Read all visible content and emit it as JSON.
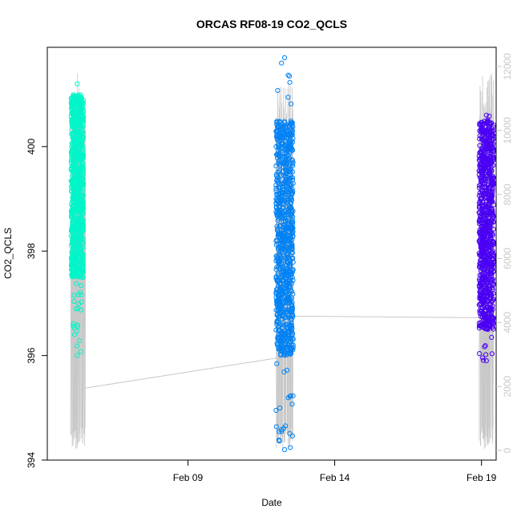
{
  "chart_data": {
    "type": "scatter",
    "title": "ORCAS RF08-19 CO2_QCLS",
    "xlabel": "Date",
    "ylabel": "CO2_QCLS",
    "x_ticks": [
      "Feb 09",
      "Feb 14",
      "Feb 19"
    ],
    "x_tick_dates": [
      "2016-02-09",
      "2016-02-14",
      "2016-02-19"
    ],
    "xlim": [
      "2016-02-04T05:00",
      "2016-02-19T12:00"
    ],
    "ylim": [
      394,
      401.9
    ],
    "y_ticks": [
      394,
      396,
      398,
      400
    ],
    "y2_ticks": [
      0,
      2000,
      4000,
      6000,
      8000,
      10000,
      12000
    ],
    "y2lim": [
      -300,
      12600
    ],
    "grid": false,
    "legend": "none",
    "series": [
      {
        "color": "#00f5c8",
        "marker": "open-circle",
        "flight_span": [
          "2016-02-05T00:00",
          "2016-02-05T12:00"
        ],
        "values_summary": {
          "x_start": "2016-02-05T00:30",
          "x_end": "2016-02-05T10:30",
          "y_min": 396.0,
          "y_max": 401.2,
          "y_typical": [
            397.5,
            401.0
          ]
        }
      },
      {
        "color": "#0082f5",
        "marker": "open-circle",
        "flight_span": [
          "2016-02-12T00:00",
          "2016-02-12T14:00"
        ],
        "values_summary": {
          "x_start": "2016-02-12T00:00",
          "x_end": "2016-02-12T14:00",
          "y_min": 394.2,
          "y_max": 401.7,
          "y_typical": [
            396.0,
            400.5
          ]
        }
      },
      {
        "color": "#4b00f5",
        "marker": "open-circle",
        "flight_span": [
          "2016-02-18T22:00",
          "2016-02-19T10:00"
        ],
        "values_summary": {
          "x_start": "2016-02-18T22:00",
          "x_end": "2016-02-19T10:00",
          "y_min": 395.9,
          "y_max": 400.6,
          "y_typical": [
            396.5,
            400.5
          ]
        }
      }
    ],
    "altitude_trace": {
      "color": "#c8c8c8",
      "axis": "right",
      "segments": [
        {
          "x": "2016-02-05T00:00",
          "y": 50
        },
        {
          "x": "2016-02-05T10:00",
          "y": 11200
        },
        {
          "x": "2016-02-05T12:00",
          "y": 100
        },
        {
          "x": "2016-02-05T12:00",
          "y": 1950
        },
        {
          "x": "2016-02-12T11:00",
          "y": 2950
        },
        {
          "x": "2016-02-12T00:00",
          "y": 100
        },
        {
          "x": "2016-02-12T14:00",
          "y": 11700
        },
        {
          "x": "2016-02-12T14:00",
          "y": 100
        },
        {
          "x": "2016-02-12T12:00",
          "y": 4200
        },
        {
          "x": "2016-02-18T23:00",
          "y": 4150
        },
        {
          "x": "2016-02-18T22:00",
          "y": 100
        },
        {
          "x": "2016-02-19T10:00",
          "y": 11950
        },
        {
          "x": "2016-02-19T10:00",
          "y": 100
        }
      ]
    }
  }
}
